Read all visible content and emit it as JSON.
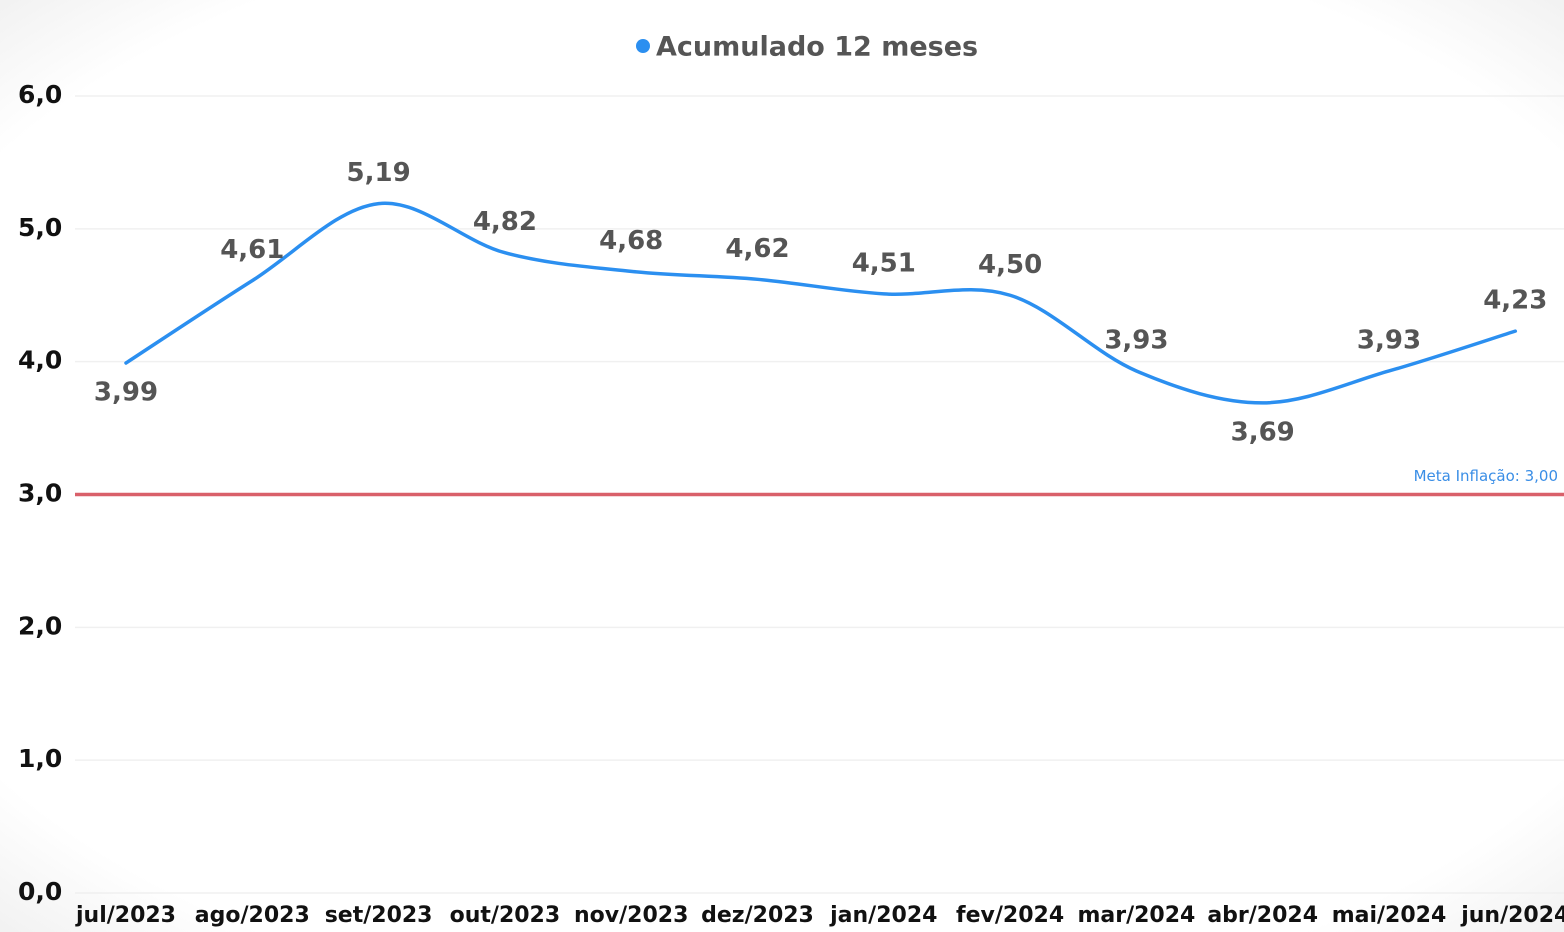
{
  "chart_data": {
    "type": "line",
    "categories": [
      "jul/2023",
      "ago/2023",
      "set/2023",
      "out/2023",
      "nov/2023",
      "dez/2023",
      "jan/2024",
      "fev/2024",
      "mar/2024",
      "abr/2024",
      "mai/2024",
      "jun/2024"
    ],
    "series": [
      {
        "name": "Acumulado 12 meses",
        "color": "#2b8ff0",
        "values": [
          3.99,
          4.61,
          5.19,
          4.82,
          4.68,
          4.62,
          4.51,
          4.5,
          3.93,
          3.69,
          3.93,
          4.23
        ],
        "value_labels": [
          "3,99",
          "4,61",
          "5,19",
          "4,82",
          "4,68",
          "4,62",
          "4,51",
          "4,50",
          "3,93",
          "3,69",
          "3,93",
          "4,23"
        ]
      }
    ],
    "ylim": [
      0,
      6
    ],
    "yticks": [
      {
        "value": 0,
        "label": "0,0"
      },
      {
        "value": 1,
        "label": "1,0"
      },
      {
        "value": 2,
        "label": "2,0"
      },
      {
        "value": 3,
        "label": "3,0"
      },
      {
        "value": 4,
        "label": "4,0"
      },
      {
        "value": 5,
        "label": "5,0"
      },
      {
        "value": 6,
        "label": "6,0"
      }
    ],
    "grid": true,
    "reference_line": {
      "value": 3,
      "label": "Meta Inflação: 3,00",
      "color": "#d9606a"
    }
  }
}
